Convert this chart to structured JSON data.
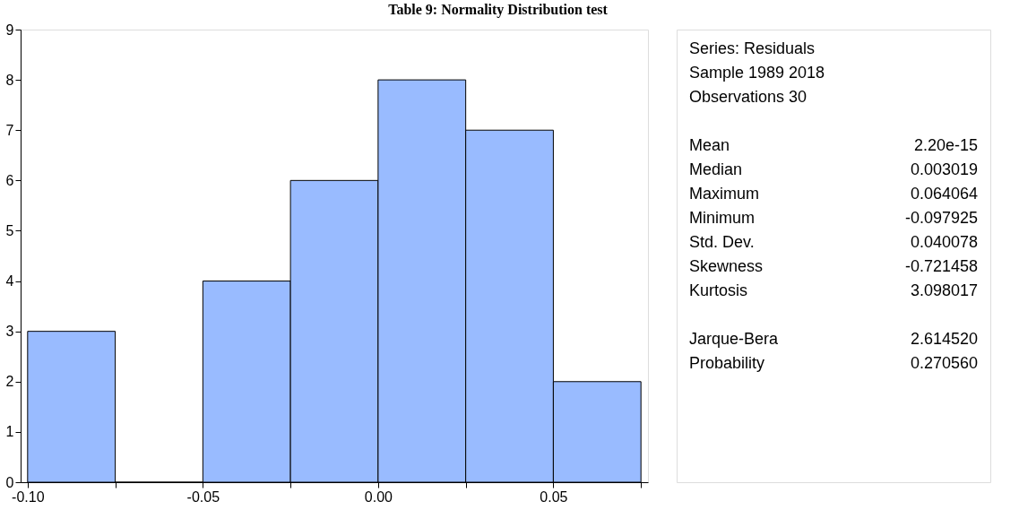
{
  "chart_data": {
    "type": "histogram",
    "title": "Table 9: Normality Distribution test",
    "bins": [
      -0.1,
      -0.075,
      -0.05,
      -0.025,
      0,
      0.025,
      0.05,
      0.075
    ],
    "values": [
      3,
      0,
      4,
      6,
      8,
      7,
      2
    ],
    "color": "#99bbff",
    "xlim": [
      -0.102,
      0.077
    ],
    "xticks": [
      {
        "value": -0.1,
        "label": "-0.10"
      },
      {
        "value": -0.075,
        "label": null
      },
      {
        "value": -0.05,
        "label": "-0.05"
      },
      {
        "value": -0.025,
        "label": null
      },
      {
        "value": 0,
        "label": "0.00"
      },
      {
        "value": 0.025,
        "label": null
      },
      {
        "value": 0.05,
        "label": "0.05"
      },
      {
        "value": 0.075,
        "label": null
      }
    ],
    "ylim": [
      0,
      9
    ],
    "yticks": [
      0,
      1,
      2,
      3,
      4,
      5,
      6,
      7,
      8,
      9
    ],
    "grid": false,
    "annotations": [
      "Series: Residuals",
      "Sample 1989 2018",
      "Observations 30",
      "Mean 2.20e-15",
      "Median 0.003019",
      "Maximum 0.064064",
      "Minimum -0.097925",
      "Std. Dev. 0.040078",
      "Skewness -0.721458",
      "Kurtosis 3.098017",
      "Jarque-Bera 2.614520",
      "Probability 0.270560"
    ]
  }
}
